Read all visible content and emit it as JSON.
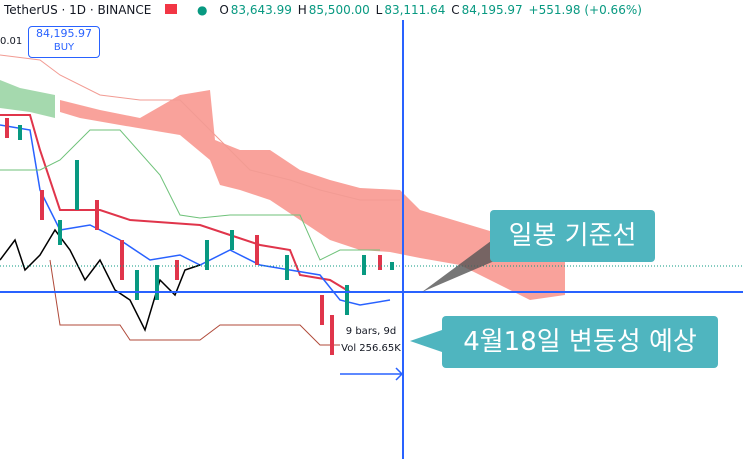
{
  "header": {
    "symbol": "TetherUS · 1D · BINANCE",
    "open_label": "O",
    "open": "83,643.99",
    "high_label": "H",
    "high": "85,500.00",
    "low_label": "L",
    "low": "83,111.64",
    "close_label": "C",
    "close": "84,195.97",
    "change": "+551.98 (+0.66%)"
  },
  "axis_fragment": "0.01",
  "order_box": {
    "price": "84,195.97",
    "side": "BUY"
  },
  "measure": {
    "bars": "9 bars, 9d",
    "volume": "Vol 256.65K"
  },
  "callouts": [
    {
      "text": "일봉 기준선"
    },
    {
      "text": "4월18일 변동성 예상"
    }
  ]
}
